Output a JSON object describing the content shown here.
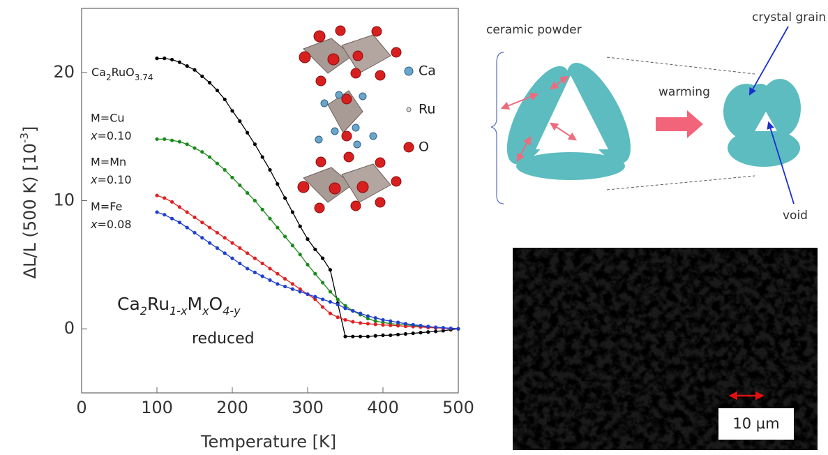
{
  "chart_data": {
    "type": "line",
    "xlabel": "Temperature [K]",
    "ylabel_parts": [
      "ΔL/L (500 K) [10",
      "-3",
      "]"
    ],
    "formula_parts": [
      "Ca",
      "2",
      "Ru",
      "1-x",
      "M",
      "x",
      "O",
      "4-y"
    ],
    "formula_note": "reduced",
    "inset_legend": [
      "Ca",
      "Ru",
      "O"
    ],
    "xlim": [
      0,
      500
    ],
    "xticks": [
      0,
      100,
      200,
      300,
      400,
      500
    ],
    "ylim": [
      -5,
      25
    ],
    "yticks": [
      0,
      10,
      20
    ],
    "x": [
      100,
      110,
      120,
      130,
      140,
      150,
      160,
      170,
      180,
      190,
      200,
      210,
      220,
      230,
      240,
      250,
      260,
      270,
      280,
      290,
      300,
      310,
      320,
      330,
      340,
      350,
      360,
      370,
      380,
      390,
      400,
      410,
      420,
      430,
      440,
      450,
      460,
      470,
      480,
      490,
      500
    ],
    "series": [
      {
        "name": "Ca2RuO3.74",
        "color": "#000000",
        "values": [
          21.1,
          21.1,
          21.0,
          20.8,
          20.5,
          20.2,
          19.7,
          19.2,
          18.6,
          17.9,
          17.0,
          16.2,
          15.3,
          14.4,
          13.4,
          12.4,
          11.3,
          10.2,
          9.1,
          8.0,
          7.0,
          6.2,
          5.5,
          4.6,
          2.0,
          -0.6,
          -0.6,
          -0.6,
          -0.6,
          -0.55,
          -0.5,
          -0.5,
          -0.45,
          -0.4,
          -0.35,
          -0.3,
          -0.25,
          -0.2,
          -0.15,
          -0.07,
          0
        ]
      },
      {
        "name": "M=Cu",
        "note": "x=0.10",
        "color": "#1a8a1a",
        "values": [
          14.8,
          14.8,
          14.7,
          14.6,
          14.4,
          14.1,
          13.8,
          13.4,
          12.9,
          12.4,
          11.8,
          11.2,
          10.6,
          10.0,
          9.3,
          8.6,
          7.9,
          7.2,
          6.5,
          5.8,
          5.0,
          4.3,
          3.6,
          2.9,
          2.3,
          1.8,
          1.4,
          1.1,
          0.8,
          0.6,
          0.5,
          0.4,
          0.35,
          0.3,
          0.25,
          0.2,
          0.15,
          0.1,
          0.07,
          0.03,
          0
        ]
      },
      {
        "name": "M=Mn",
        "note": "x=0.10",
        "color": "#e02020",
        "values": [
          10.4,
          10.2,
          9.9,
          9.5,
          9.1,
          8.7,
          8.3,
          7.9,
          7.5,
          7.1,
          6.7,
          6.3,
          5.9,
          5.5,
          5.1,
          4.7,
          4.3,
          3.9,
          3.5,
          3.1,
          2.7,
          2.3,
          1.7,
          1.2,
          0.9,
          0.7,
          0.55,
          0.45,
          0.4,
          0.35,
          0.3,
          0.27,
          0.24,
          0.2,
          0.17,
          0.14,
          0.1,
          0.07,
          0.05,
          0.02,
          0
        ]
      },
      {
        "name": "M=Fe",
        "note": "x=0.08",
        "color": "#1f3fd0",
        "values": [
          9.1,
          8.9,
          8.6,
          8.3,
          7.9,
          7.5,
          7.1,
          6.7,
          6.3,
          5.9,
          5.5,
          5.1,
          4.7,
          4.4,
          4.1,
          3.8,
          3.5,
          3.3,
          3.1,
          2.9,
          2.7,
          2.5,
          2.3,
          2.1,
          1.9,
          1.6,
          1.4,
          1.2,
          1.0,
          0.85,
          0.7,
          0.6,
          0.5,
          0.4,
          0.32,
          0.25,
          0.18,
          0.12,
          0.08,
          0.04,
          0
        ]
      }
    ]
  },
  "diagram": {
    "ceramic": "ceramic powder",
    "warming": "warming",
    "grain": "crystal grain",
    "void": "void"
  },
  "micrograph": {
    "scale": "10 µm"
  }
}
